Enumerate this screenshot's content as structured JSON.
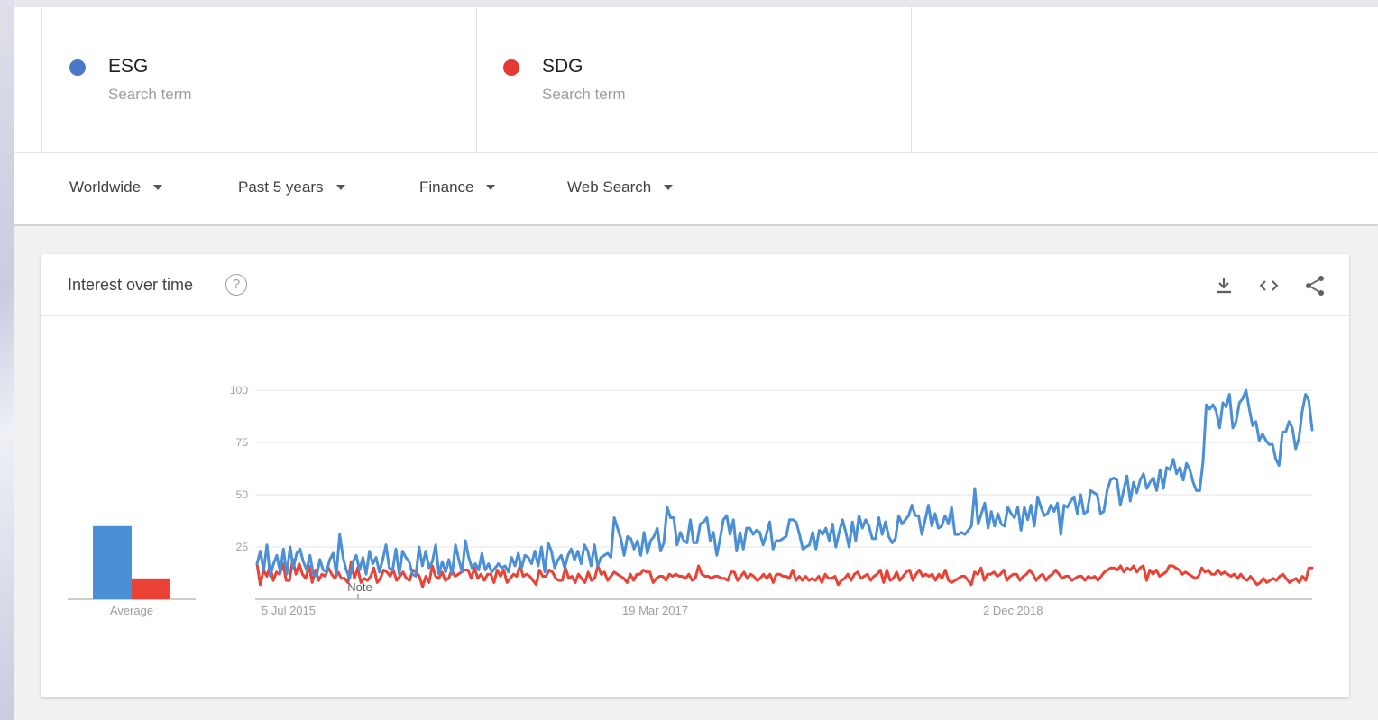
{
  "terms": [
    {
      "name": "ESG",
      "sub": "Search term",
      "color": "#4b77c9"
    },
    {
      "name": "SDG",
      "sub": "Search term",
      "color": "#e53935"
    }
  ],
  "filters": {
    "region": "Worldwide",
    "period": "Past 5 years",
    "category": "Finance",
    "source": "Web Search"
  },
  "card": {
    "title": "Interest over time",
    "help_icon": "help-circle-icon",
    "tools": [
      "download-icon",
      "embed-code-icon",
      "share-icon"
    ]
  },
  "chart_data": {
    "type": "line",
    "x_ticks": [
      "5 Jul 2015",
      "19 Mar 2017",
      "2 Dec 2018"
    ],
    "y_ticks": [
      25,
      50,
      75,
      100
    ],
    "ylim": [
      0,
      100
    ],
    "annotation": "Note",
    "grid": true,
    "average_label": "Average",
    "averages": [
      {
        "name": "ESG",
        "value": 35,
        "color": "#4b8fd6"
      },
      {
        "name": "SDG",
        "value": 10,
        "color": "#ea4335"
      }
    ],
    "series": [
      {
        "name": "ESG",
        "color": "#4b8fd6",
        "values": [
          17,
          23,
          14,
          26,
          11,
          17,
          21,
          13,
          24,
          12,
          25,
          15,
          22,
          24,
          18,
          14,
          21,
          12,
          11,
          19,
          14,
          13,
          19,
          22,
          12,
          31,
          20,
          14,
          10,
          18,
          21,
          14,
          20,
          12,
          23,
          17,
          20,
          13,
          19,
          26,
          15,
          14,
          24,
          12,
          23,
          20,
          18,
          12,
          11,
          25,
          16,
          23,
          15,
          18,
          26,
          12,
          18,
          13,
          19,
          12,
          26,
          19,
          13,
          28,
          20,
          15,
          17,
          14,
          22,
          14,
          17,
          13,
          15,
          17,
          15,
          16,
          13,
          20,
          16,
          22,
          15,
          21,
          20,
          17,
          23,
          16,
          25,
          13,
          27,
          23,
          15,
          19,
          21,
          15,
          21,
          24,
          19,
          23,
          17,
          26,
          23,
          16,
          26,
          16,
          20,
          21,
          22,
          20,
          39,
          34,
          29,
          21,
          30,
          29,
          24,
          28,
          21,
          32,
          22,
          28,
          30,
          34,
          23,
          27,
          44,
          39,
          39,
          26,
          32,
          28,
          27,
          38,
          27,
          27,
          36,
          37,
          39,
          28,
          32,
          21,
          29,
          38,
          40,
          31,
          38,
          23,
          32,
          24,
          34,
          34,
          31,
          33,
          32,
          26,
          31,
          37,
          24,
          28,
          28,
          29,
          30,
          38,
          38,
          37,
          31,
          24,
          25,
          26,
          32,
          24,
          33,
          31,
          34,
          28,
          36,
          25,
          32,
          38,
          32,
          25,
          37,
          28,
          40,
          34,
          38,
          35,
          29,
          29,
          39,
          31,
          37,
          30,
          27,
          29,
          40,
          36,
          38,
          40,
          45,
          40,
          40,
          31,
          38,
          45,
          35,
          41,
          34,
          35,
          40,
          36,
          44,
          31,
          31,
          32,
          31,
          33,
          35,
          53,
          36,
          41,
          46,
          34,
          42,
          35,
          41,
          36,
          35,
          44,
          41,
          39,
          44,
          33,
          44,
          38,
          45,
          35,
          49,
          44,
          40,
          41,
          45,
          42,
          46,
          31,
          45,
          44,
          47,
          49,
          41,
          50,
          41,
          42,
          52,
          51,
          50,
          41,
          42,
          52,
          57,
          58,
          57,
          45,
          52,
          59,
          47,
          56,
          51,
          57,
          60,
          53,
          56,
          58,
          52,
          62,
          53,
          63,
          62,
          67,
          60,
          63,
          57,
          65,
          62,
          56,
          52,
          52,
          66,
          93,
          91,
          93,
          90,
          82,
          94,
          92,
          98,
          82,
          85,
          94,
          96,
          100,
          91,
          83,
          85,
          76,
          79,
          76,
          74,
          74,
          67,
          64,
          80,
          80,
          85,
          82,
          72,
          77,
          90,
          98,
          95,
          81
        ]
      },
      {
        "name": "SDG",
        "color": "#ea4335",
        "values": [
          17,
          7,
          14,
          11,
          16,
          9,
          13,
          12,
          17,
          9,
          9,
          19,
          12,
          17,
          12,
          10,
          16,
          8,
          14,
          9,
          12,
          11,
          15,
          12,
          10,
          13,
          10,
          10,
          8,
          18,
          10,
          15,
          8,
          10,
          9,
          11,
          15,
          8,
          10,
          14,
          13,
          11,
          14,
          9,
          11,
          13,
          10,
          9,
          14,
          13,
          11,
          6,
          11,
          8,
          16,
          11,
          10,
          13,
          9,
          10,
          14,
          11,
          12,
          13,
          14,
          14,
          10,
          15,
          10,
          12,
          9,
          12,
          12,
          8,
          14,
          11,
          14,
          8,
          10,
          12,
          11,
          16,
          11,
          12,
          11,
          9,
          7,
          14,
          11,
          11,
          14,
          13,
          10,
          9,
          9,
          15,
          10,
          11,
          8,
          12,
          10,
          8,
          13,
          9,
          10,
          16,
          12,
          13,
          9,
          11,
          13,
          12,
          11,
          10,
          8,
          12,
          9,
          12,
          12,
          14,
          13,
          13,
          8,
          10,
          11,
          11,
          9,
          12,
          11,
          12,
          11,
          11,
          10,
          12,
          9,
          10,
          16,
          12,
          11,
          11,
          10,
          11,
          11,
          10,
          10,
          9,
          13,
          13,
          9,
          11,
          13,
          10,
          12,
          11,
          9,
          10,
          12,
          10,
          12,
          8,
          12,
          12,
          11,
          11,
          10,
          14,
          9,
          11,
          9,
          11,
          9,
          10,
          9,
          11,
          8,
          12,
          10,
          10,
          11,
          7,
          9,
          10,
          12,
          9,
          12,
          13,
          10,
          11,
          12,
          9,
          11,
          12,
          14,
          8,
          14,
          9,
          10,
          13,
          9,
          11,
          13,
          14,
          9,
          12,
          14,
          11,
          12,
          11,
          12,
          9,
          12,
          10,
          14,
          9,
          8,
          9,
          10,
          11,
          11,
          9,
          7,
          13,
          12,
          15,
          9,
          12,
          12,
          13,
          11,
          12,
          14,
          9,
          11,
          12,
          12,
          9,
          11,
          12,
          14,
          12,
          9,
          11,
          12,
          9,
          11,
          12,
          14,
          12,
          10,
          11,
          11,
          9,
          10,
          11,
          11,
          9,
          11,
          10,
          11,
          9,
          11,
          13,
          14,
          15,
          15,
          14,
          16,
          13,
          15,
          14,
          16,
          13,
          15,
          16,
          9,
          14,
          12,
          14,
          11,
          12,
          13,
          16,
          16,
          15,
          14,
          12,
          13,
          12,
          11,
          10,
          11,
          15,
          13,
          14,
          12,
          12,
          14,
          12,
          13,
          12,
          11,
          12,
          10,
          12,
          10,
          9,
          11,
          9,
          7,
          8,
          10,
          8,
          9,
          10,
          9,
          11,
          12,
          10,
          8,
          9,
          10,
          8,
          11,
          9,
          15,
          15
        ]
      }
    ]
  }
}
